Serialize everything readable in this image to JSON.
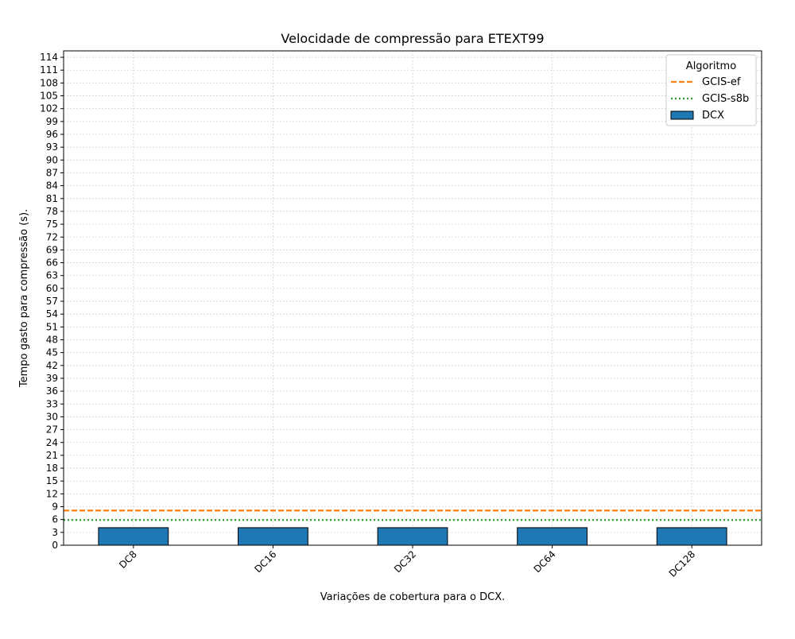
{
  "chart_data": {
    "type": "bar",
    "title": "Velocidade de compressão para  ETEXT99",
    "xlabel": "Variações de cobertura para o DCX.",
    "ylabel": "Tempo gasto para compressão (s).",
    "categories": [
      "DC8",
      "DC16",
      "DC32",
      "DC64",
      "DC128"
    ],
    "series": [
      {
        "name": "DCX",
        "values": [
          4.1,
          4.1,
          4.1,
          4.1,
          4.1
        ],
        "color": "#1f77b4"
      }
    ],
    "reference_lines": [
      {
        "name": "GCIS-ef",
        "value": 8.1,
        "color": "#ff7f0e",
        "style": "dashed"
      },
      {
        "name": "GCIS-s8b",
        "value": 5.9,
        "color": "#2ca02c",
        "style": "dotted"
      }
    ],
    "ylim": [
      0,
      115.5
    ],
    "yticks": [
      0,
      3,
      6,
      9,
      12,
      15,
      18,
      21,
      24,
      27,
      30,
      33,
      36,
      39,
      42,
      45,
      48,
      51,
      54,
      57,
      60,
      63,
      66,
      69,
      72,
      75,
      78,
      81,
      84,
      87,
      90,
      93,
      96,
      99,
      102,
      105,
      108,
      111,
      114
    ],
    "grid": true,
    "legend": {
      "title": "Algoritmo",
      "placement": "top-right"
    }
  }
}
